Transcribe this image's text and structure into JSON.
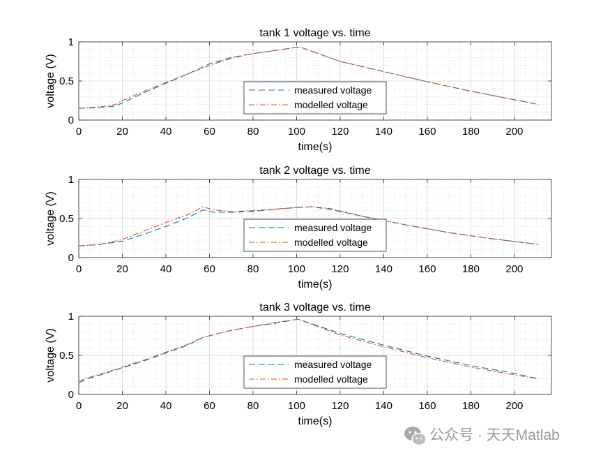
{
  "watermark": {
    "text": "公众号 · 天天Matlab",
    "icon": "wechat-icon"
  },
  "colors": {
    "measured": "#0072BD",
    "modelled": "#D95319",
    "grid": "#dddddd",
    "axes": "#262626"
  },
  "chart_data": [
    {
      "type": "line",
      "title": "tank 1 voltage vs. time",
      "xlabel": "time(s)",
      "ylabel": "voltage (V)",
      "xlim": [
        0,
        217
      ],
      "ylim": [
        0,
        1
      ],
      "xticks": [
        "0",
        "20",
        "40",
        "60",
        "80",
        "100",
        "120",
        "140",
        "160",
        "180",
        "200"
      ],
      "yticks": [
        "0",
        "0.5",
        "1"
      ],
      "grid": true,
      "minor_grid": true,
      "legend": "center",
      "series": [
        {
          "name": "measured voltage",
          "style": "dashed",
          "x": [
            0,
            10,
            17,
            20,
            30,
            40,
            50,
            60,
            70,
            80,
            90,
            100,
            102,
            120,
            140,
            160,
            180,
            200,
            211
          ],
          "y": [
            0.15,
            0.16,
            0.18,
            0.22,
            0.35,
            0.47,
            0.59,
            0.72,
            0.8,
            0.85,
            0.89,
            0.93,
            0.93,
            0.75,
            0.62,
            0.49,
            0.37,
            0.26,
            0.2
          ]
        },
        {
          "name": "modelled voltage",
          "style": "dashdot",
          "x": [
            0,
            10,
            17,
            20,
            30,
            40,
            50,
            60,
            70,
            80,
            90,
            100,
            102,
            120,
            140,
            160,
            180,
            200,
            211
          ],
          "y": [
            0.15,
            0.17,
            0.2,
            0.25,
            0.37,
            0.48,
            0.59,
            0.7,
            0.79,
            0.85,
            0.89,
            0.93,
            0.93,
            0.75,
            0.62,
            0.49,
            0.37,
            0.26,
            0.2
          ]
        }
      ]
    },
    {
      "type": "line",
      "title": "tank 2 voltage vs. time",
      "xlabel": "time(s)",
      "ylabel": "voltage (V)",
      "xlim": [
        0,
        217
      ],
      "ylim": [
        0,
        1
      ],
      "xticks": [
        "0",
        "20",
        "40",
        "60",
        "80",
        "100",
        "120",
        "140",
        "160",
        "180",
        "200"
      ],
      "yticks": [
        "0",
        "0.5",
        "1"
      ],
      "grid": true,
      "minor_grid": true,
      "legend": "center",
      "series": [
        {
          "name": "measured voltage",
          "style": "dashed",
          "x": [
            0,
            10,
            20,
            30,
            40,
            50,
            57,
            62,
            70,
            80,
            90,
            100,
            107,
            115,
            130,
            150,
            170,
            190,
            211
          ],
          "y": [
            0.15,
            0.17,
            0.21,
            0.3,
            0.4,
            0.51,
            0.61,
            0.58,
            0.58,
            0.59,
            0.62,
            0.64,
            0.65,
            0.62,
            0.53,
            0.42,
            0.32,
            0.24,
            0.17
          ]
        },
        {
          "name": "modelled voltage",
          "style": "dashdot",
          "x": [
            0,
            10,
            20,
            30,
            40,
            50,
            57,
            62,
            70,
            80,
            90,
            100,
            107,
            115,
            130,
            150,
            170,
            190,
            211
          ],
          "y": [
            0.15,
            0.17,
            0.23,
            0.34,
            0.45,
            0.55,
            0.65,
            0.61,
            0.59,
            0.6,
            0.62,
            0.64,
            0.65,
            0.63,
            0.53,
            0.42,
            0.32,
            0.24,
            0.17
          ]
        }
      ]
    },
    {
      "type": "line",
      "title": "tank 3 voltage vs. time",
      "xlabel": "time(s)",
      "ylabel": "voltage (V)",
      "xlim": [
        0,
        217
      ],
      "ylim": [
        0,
        1
      ],
      "xticks": [
        "0",
        "20",
        "40",
        "60",
        "80",
        "100",
        "120",
        "140",
        "160",
        "180",
        "200"
      ],
      "yticks": [
        "0",
        "0.5",
        "1"
      ],
      "grid": true,
      "minor_grid": true,
      "legend": "center",
      "series": [
        {
          "name": "measured voltage",
          "style": "dashed",
          "x": [
            0,
            5,
            10,
            20,
            30,
            40,
            50,
            57,
            70,
            80,
            90,
            100,
            101,
            120,
            140,
            160,
            180,
            200,
            211
          ],
          "y": [
            0.15,
            0.21,
            0.25,
            0.34,
            0.43,
            0.53,
            0.63,
            0.73,
            0.82,
            0.87,
            0.91,
            0.96,
            0.96,
            0.78,
            0.63,
            0.49,
            0.37,
            0.27,
            0.2
          ]
        },
        {
          "name": "modelled voltage",
          "style": "dashdot",
          "x": [
            0,
            5,
            10,
            20,
            30,
            40,
            50,
            57,
            70,
            80,
            90,
            100,
            101,
            120,
            140,
            160,
            180,
            200,
            211
          ],
          "y": [
            0.17,
            0.22,
            0.26,
            0.35,
            0.44,
            0.54,
            0.64,
            0.73,
            0.82,
            0.87,
            0.92,
            0.96,
            0.96,
            0.76,
            0.61,
            0.47,
            0.35,
            0.25,
            0.2
          ]
        }
      ]
    }
  ]
}
